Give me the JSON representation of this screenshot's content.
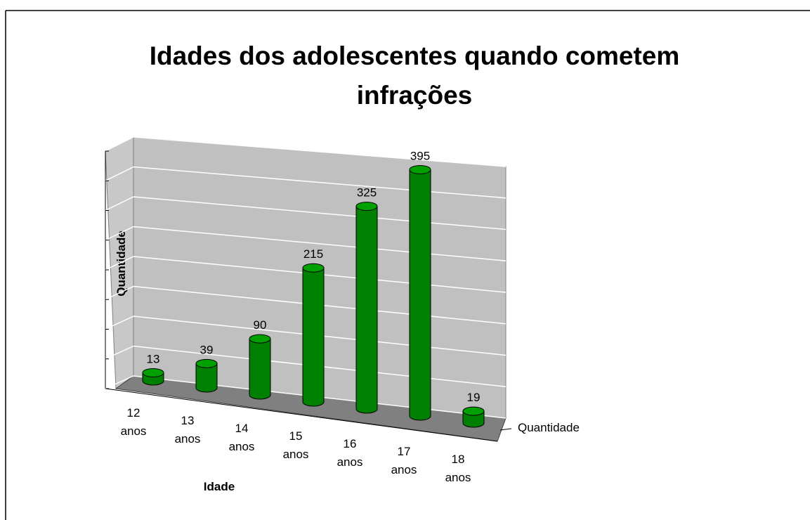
{
  "chart_data": {
    "type": "bar3d",
    "title": "Idades dos adolescentes quando cometem infrações",
    "x_label": "Idade",
    "y_label": "Quantidade",
    "categories": [
      "12 anos",
      "13 anos",
      "14 anos",
      "15 anos",
      "16 anos",
      "17 anos",
      "18 anos"
    ],
    "series": [
      {
        "name": "Quantidade",
        "color": "#008000",
        "values": [
          13,
          39,
          90,
          215,
          325,
          395,
          19
        ]
      }
    ],
    "ylim": [
      0,
      400
    ],
    "yticks": [
      0,
      50,
      100,
      150,
      200,
      250,
      300,
      350,
      400
    ],
    "grid": true
  }
}
